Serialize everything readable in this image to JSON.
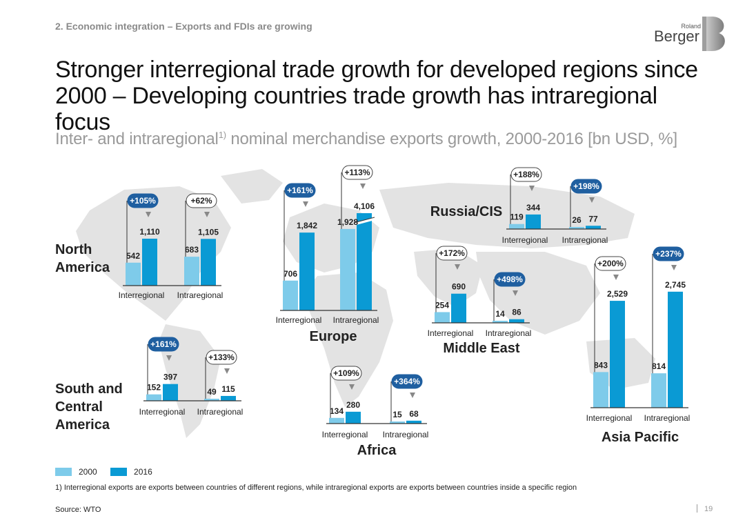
{
  "header": {
    "section_label": "2. Economic integration – Exports and FDIs are growing",
    "title": "Stronger interregional trade growth for developed regions since 2000 – Developing countries trade growth has intraregional focus",
    "subtitle_main": "Inter- and intraregional",
    "subtitle_sup": "1)",
    "subtitle_rest": " nominal merchandise exports growth, 2000-2016 [bn USD, %]"
  },
  "logo": {
    "small": "Roland",
    "big": "Berger"
  },
  "colors": {
    "y2000": "#7ecbea",
    "y2016": "#0a9ad4",
    "badge": "#1f5fa0",
    "map": "#e3e3e3"
  },
  "chart_data": {
    "type": "bar",
    "unit": "bn USD",
    "series_names": [
      "2000",
      "2016"
    ],
    "regions": [
      {
        "name": "North America",
        "categories": [
          "Interregional",
          "Intraregional"
        ],
        "values_2000": [
          542,
          683
        ],
        "values_2016": [
          1110,
          1105
        ],
        "labels_2000": [
          "542",
          "683"
        ],
        "labels_2016": [
          "1,110",
          "1,105"
        ],
        "growth": [
          "+105%",
          "+62%"
        ],
        "highlight": [
          true,
          false
        ]
      },
      {
        "name": "Europe",
        "categories": [
          "Interregional",
          "Intraregional"
        ],
        "values_2000": [
          706,
          1928
        ],
        "values_2016": [
          1842,
          4106
        ],
        "labels_2000": [
          "706",
          "1,928"
        ],
        "labels_2016": [
          "1,842",
          "4,106"
        ],
        "growth": [
          "+161%",
          "+113%"
        ],
        "highlight": [
          true,
          false
        ]
      },
      {
        "name": "Russia/CIS",
        "categories": [
          "Interregional",
          "Intraregional"
        ],
        "values_2000": [
          119,
          26
        ],
        "values_2016": [
          344,
          77
        ],
        "labels_2000": [
          "119",
          "26"
        ],
        "labels_2016": [
          "344",
          "77"
        ],
        "growth": [
          "+188%",
          "+198%"
        ],
        "highlight": [
          false,
          true
        ]
      },
      {
        "name": "Middle East",
        "categories": [
          "Interregional",
          "Intraregional"
        ],
        "values_2000": [
          254,
          14
        ],
        "values_2016": [
          690,
          86
        ],
        "labels_2000": [
          "254",
          "14"
        ],
        "labels_2016": [
          "690",
          "86"
        ],
        "growth": [
          "+172%",
          "+498%"
        ],
        "highlight": [
          false,
          true
        ]
      },
      {
        "name": "Asia Pacific",
        "categories": [
          "Interregional",
          "Intraregional"
        ],
        "values_2000": [
          843,
          814
        ],
        "values_2016": [
          2529,
          2745
        ],
        "labels_2000": [
          "843",
          "814"
        ],
        "labels_2016": [
          "2,529",
          "2,745"
        ],
        "growth": [
          "+200%",
          "+237%"
        ],
        "highlight": [
          false,
          true
        ]
      },
      {
        "name": "South and Central America",
        "categories": [
          "Interregional",
          "Intraregional"
        ],
        "values_2000": [
          152,
          49
        ],
        "values_2016": [
          397,
          115
        ],
        "labels_2000": [
          "152",
          "49"
        ],
        "labels_2016": [
          "397",
          "115"
        ],
        "growth": [
          "+161%",
          "+133%"
        ],
        "highlight": [
          true,
          false
        ]
      },
      {
        "name": "Africa",
        "categories": [
          "Interregional",
          "Intraregional"
        ],
        "values_2000": [
          134,
          15
        ],
        "values_2016": [
          280,
          68
        ],
        "labels_2000": [
          "134",
          "15"
        ],
        "labels_2016": [
          "280",
          "68"
        ],
        "growth": [
          "+109%",
          "+364%"
        ],
        "highlight": [
          false,
          true
        ]
      }
    ]
  },
  "legend": {
    "items": [
      "2000",
      "2016"
    ]
  },
  "footnote": "1) Interregional exports are exports between countries of different regions, while intraregional exports are exports between countries inside a specific region",
  "source": "Source: WTO",
  "page_number": "19"
}
